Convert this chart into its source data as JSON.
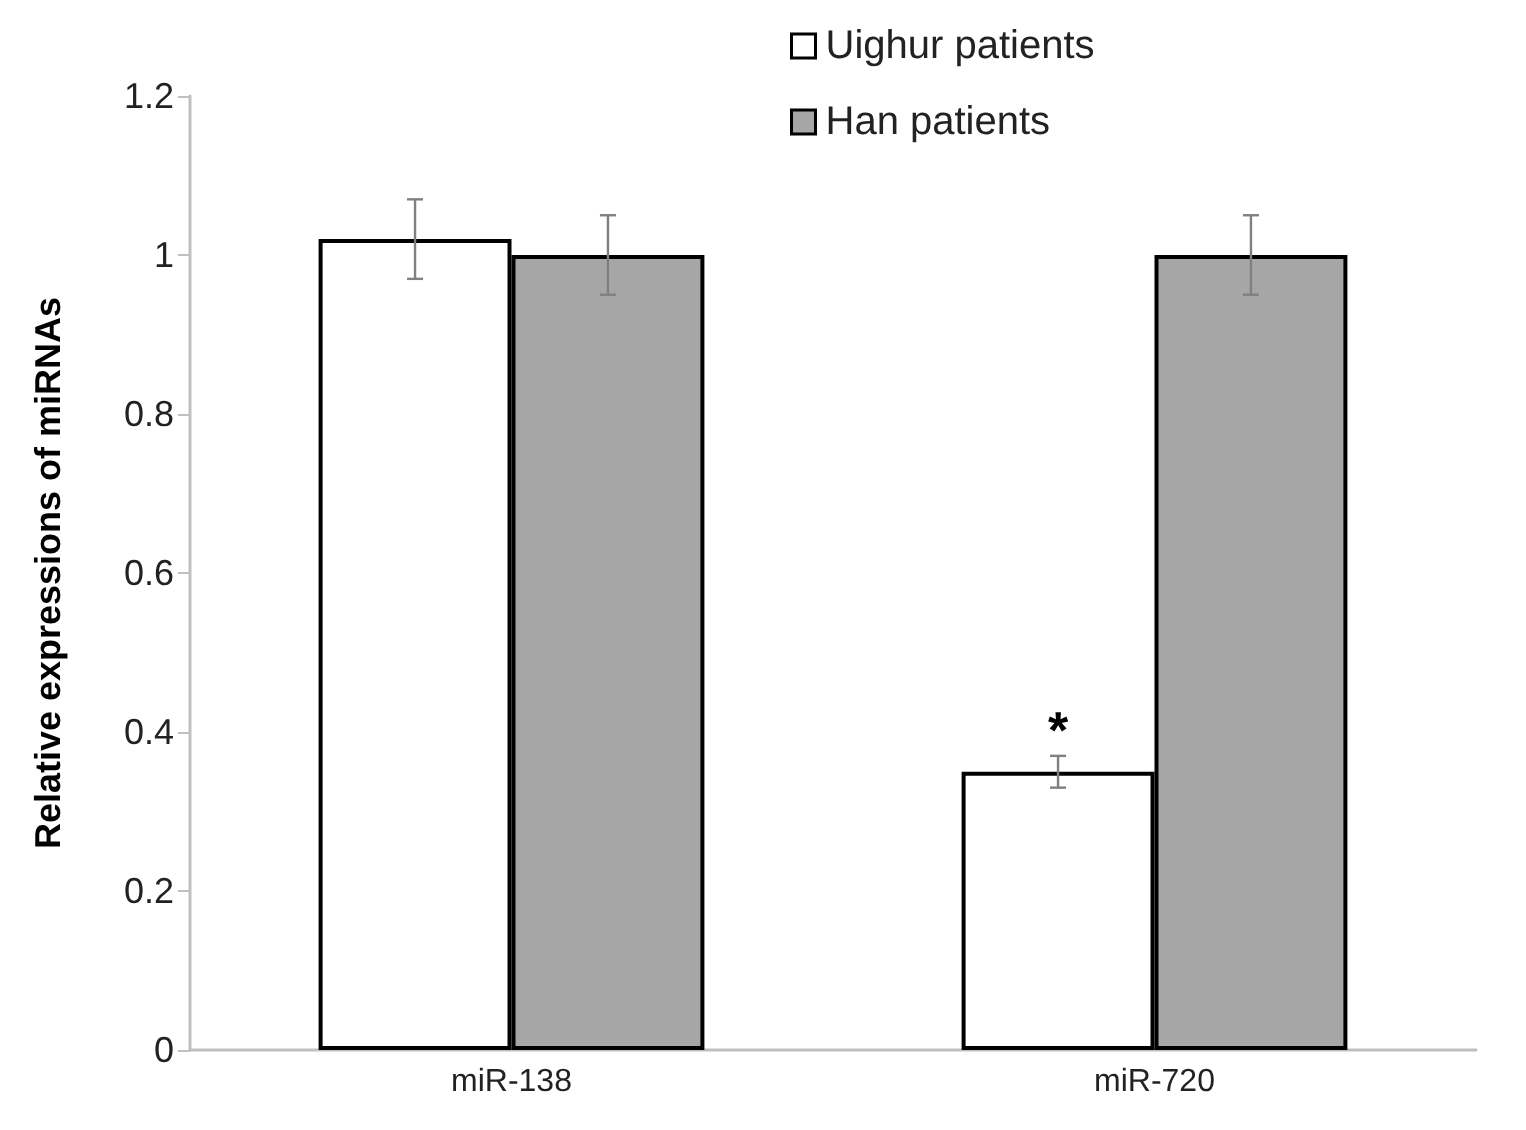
{
  "chart_data": {
    "type": "bar",
    "ylabel": "Relative expressions of miRNAs",
    "categories": [
      "miR-138",
      "miR-720"
    ],
    "series": [
      {
        "name": "Uighur patients",
        "color": "#ffffff",
        "values": [
          1.02,
          0.35
        ],
        "errors": [
          0.05,
          0.02
        ]
      },
      {
        "name": "Han patients",
        "color": "#a6a6a6",
        "values": [
          1.0,
          1.0
        ],
        "errors": [
          0.05,
          0.05
        ]
      }
    ],
    "ylim": [
      0,
      1.2
    ],
    "yticks": [
      0,
      0.2,
      0.4,
      0.6,
      0.8,
      1,
      1.2
    ],
    "grid": false,
    "legend": "top",
    "annotations": [
      {
        "text": "*",
        "x": "miR-720",
        "y": 0.37
      }
    ]
  }
}
